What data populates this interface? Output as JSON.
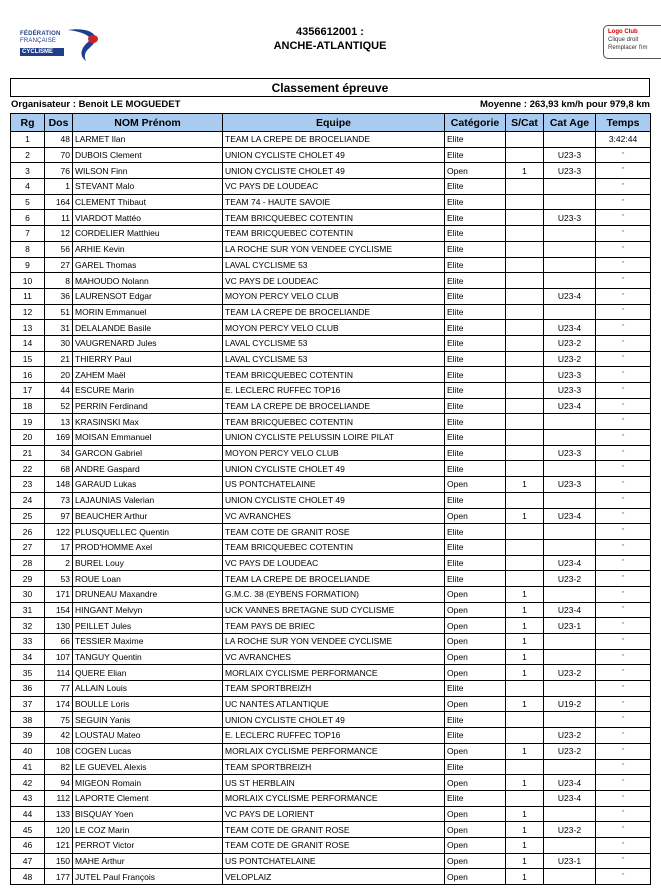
{
  "header": {
    "logo_left_text": [
      "FÉDÉRATION",
      "FRANÇAISE",
      "CYCLISME"
    ],
    "event_code": "4356612001 :",
    "event_name": "ANCHE-ATLANTIQUE",
    "logo_right_lines": [
      "Logo Club",
      "Clique droit",
      "Remplacer l'im"
    ]
  },
  "title": "Classement épreuve",
  "organisateur": "Organisateur : Benoit LE MOGUEDET",
  "moyenne": "Moyenne : 263,93 km/h pour 979,8 km",
  "columns": [
    "Rg",
    "Dos",
    "NOM Prénom",
    "Equipe",
    "Catégorie",
    "S/Cat",
    "Cat Age",
    "Temps"
  ],
  "rows": [
    [
      "1",
      "48",
      "LARMET Ilan",
      "TEAM LA CREPE DE BROCELIANDE",
      "Elite",
      "",
      "",
      "3:42:44"
    ],
    [
      "2",
      "70",
      "DUBOIS Clement",
      "UNION CYCLISTE CHOLET 49",
      "Elite",
      "",
      "U23-3",
      "\""
    ],
    [
      "3",
      "76",
      "WILSON Finn",
      "UNION CYCLISTE CHOLET 49",
      "Open",
      "1",
      "U23-3",
      "\""
    ],
    [
      "4",
      "1",
      "STEVANT Malo",
      "VC PAYS DE LOUDEAC",
      "Elite",
      "",
      "",
      "\""
    ],
    [
      "5",
      "164",
      "CLEMENT Thibaut",
      "TEAM 74 - HAUTE SAVOIE",
      "Elite",
      "",
      "",
      "\""
    ],
    [
      "6",
      "11",
      "VIARDOT Mattéo",
      "TEAM BRICQUEBEC COTENTIN",
      "Elite",
      "",
      "U23-3",
      "\""
    ],
    [
      "7",
      "12",
      "CORDELIER Matthieu",
      "TEAM BRICQUEBEC COTENTIN",
      "Elite",
      "",
      "",
      "\""
    ],
    [
      "8",
      "56",
      "ARHIE Kevin",
      "LA ROCHE SUR YON VENDEE CYCLISME",
      "Elite",
      "",
      "",
      "\""
    ],
    [
      "9",
      "27",
      "GAREL Thomas",
      "LAVAL CYCLISME 53",
      "Elite",
      "",
      "",
      "\""
    ],
    [
      "10",
      "8",
      "MAHOUDO Nolann",
      "VC PAYS DE LOUDEAC",
      "Elite",
      "",
      "",
      "\""
    ],
    [
      "11",
      "36",
      "LAURENSOT Edgar",
      "MOYON PERCY VELO CLUB",
      "Elite",
      "",
      "U23-4",
      "\""
    ],
    [
      "12",
      "51",
      "MORIN Emmanuel",
      "TEAM LA CREPE DE BROCELIANDE",
      "Elite",
      "",
      "",
      "\""
    ],
    [
      "13",
      "31",
      "DELALANDE Basile",
      "MOYON PERCY VELO CLUB",
      "Elite",
      "",
      "U23-4",
      "\""
    ],
    [
      "14",
      "30",
      "VAUGRENARD Jules",
      "LAVAL CYCLISME 53",
      "Elite",
      "",
      "U23-2",
      "\""
    ],
    [
      "15",
      "21",
      "THIERRY Paul",
      "LAVAL CYCLISME 53",
      "Elite",
      "",
      "U23-2",
      "\""
    ],
    [
      "16",
      "20",
      "ZAHEM Maël",
      "TEAM BRICQUEBEC COTENTIN",
      "Elite",
      "",
      "U23-3",
      "\""
    ],
    [
      "17",
      "44",
      "ESCURE Marin",
      "E. LECLERC RUFFEC TOP16",
      "Elite",
      "",
      "U23-3",
      "\""
    ],
    [
      "18",
      "52",
      "PERRIN Ferdinand",
      "TEAM LA CREPE DE BROCELIANDE",
      "Elite",
      "",
      "U23-4",
      "\""
    ],
    [
      "19",
      "13",
      "KRASINSKI Max",
      "TEAM BRICQUEBEC COTENTIN",
      "Elite",
      "",
      "",
      "\""
    ],
    [
      "20",
      "169",
      "MOISAN Emmanuel",
      "UNION CYCLISTE PELUSSIN LOIRE PILAT",
      "Elite",
      "",
      "",
      "\""
    ],
    [
      "21",
      "34",
      "GARCON Gabriel",
      "MOYON PERCY VELO CLUB",
      "Elite",
      "",
      "U23-3",
      "\""
    ],
    [
      "22",
      "68",
      "ANDRE Gaspard",
      "UNION CYCLISTE CHOLET 49",
      "Elite",
      "",
      "",
      "\""
    ],
    [
      "23",
      "148",
      "GARAUD Lukas",
      "US PONTCHATELAINE",
      "Open",
      "1",
      "U23-3",
      "\""
    ],
    [
      "24",
      "73",
      "LAJAUNIAS Valerian",
      "UNION CYCLISTE CHOLET 49",
      "Elite",
      "",
      "",
      "\""
    ],
    [
      "25",
      "97",
      "BEAUCHER Arthur",
      "VC AVRANCHES",
      "Open",
      "1",
      "U23-4",
      "\""
    ],
    [
      "26",
      "122",
      "PLUSQUELLEC Quentin",
      "TEAM COTE DE GRANIT ROSE",
      "Elite",
      "",
      "",
      "\""
    ],
    [
      "27",
      "17",
      "PROD'HOMME Axel",
      "TEAM BRICQUEBEC COTENTIN",
      "Elite",
      "",
      "",
      "\""
    ],
    [
      "28",
      "2",
      "BUREL Louy",
      "VC PAYS DE LOUDEAC",
      "Elite",
      "",
      "U23-4",
      "\""
    ],
    [
      "29",
      "53",
      "ROUE Loan",
      "TEAM LA CREPE DE BROCELIANDE",
      "Elite",
      "",
      "U23-2",
      "\""
    ],
    [
      "30",
      "171",
      "DRUNEAU Maxandre",
      "G.M.C. 38 (EYBENS FORMATION)",
      "Open",
      "1",
      "",
      "\""
    ],
    [
      "31",
      "154",
      "HINGANT Melvyn",
      "UCK VANNES BRETAGNE SUD CYCLISME",
      "Open",
      "1",
      "U23-4",
      "\""
    ],
    [
      "32",
      "130",
      "PEILLET Jules",
      "TEAM PAYS DE BRIEC",
      "Open",
      "1",
      "U23-1",
      "\""
    ],
    [
      "33",
      "66",
      "TESSIER Maxime",
      "LA ROCHE SUR YON VENDEE CYCLISME",
      "Open",
      "1",
      "",
      "\""
    ],
    [
      "34",
      "107",
      "TANGUY Quentin",
      "VC AVRANCHES",
      "Open",
      "1",
      "",
      "\""
    ],
    [
      "35",
      "114",
      "QUERE Elian",
      "MORLAIX CYCLISME PERFORMANCE",
      "Open",
      "1",
      "U23-2",
      "\""
    ],
    [
      "36",
      "77",
      "ALLAIN Louis",
      "TEAM SPORTBREIZH",
      "Elite",
      "",
      "",
      "\""
    ],
    [
      "37",
      "174",
      "BOULLE Loris",
      "UC NANTES ATLANTIQUE",
      "Open",
      "1",
      "U19-2",
      "\""
    ],
    [
      "38",
      "75",
      "SEGUIN Yanis",
      "UNION CYCLISTE CHOLET 49",
      "Elite",
      "",
      "",
      "\""
    ],
    [
      "39",
      "42",
      "LOUSTAU Mateo",
      "E. LECLERC RUFFEC TOP16",
      "Elite",
      "",
      "U23-2",
      "\""
    ],
    [
      "40",
      "108",
      "COGEN Lucas",
      "MORLAIX CYCLISME PERFORMANCE",
      "Open",
      "1",
      "U23-2",
      "\""
    ],
    [
      "41",
      "82",
      "LE GUEVEL Alexis",
      "TEAM SPORTBREIZH",
      "Elite",
      "",
      "",
      "\""
    ],
    [
      "42",
      "94",
      "MIGEON Romain",
      "US ST HERBLAIN",
      "Open",
      "1",
      "U23-4",
      "\""
    ],
    [
      "43",
      "112",
      "LAPORTE Clement",
      "MORLAIX CYCLISME PERFORMANCE",
      "Elite",
      "",
      "U23-4",
      "\""
    ],
    [
      "44",
      "133",
      "BISQUAY Yoen",
      "VC PAYS DE LORIENT",
      "Open",
      "1",
      "",
      "\""
    ],
    [
      "45",
      "120",
      "LE COZ Marin",
      "TEAM COTE DE GRANIT ROSE",
      "Open",
      "1",
      "U23-2",
      "\""
    ],
    [
      "46",
      "121",
      "PERROT Victor",
      "TEAM COTE DE GRANIT ROSE",
      "Open",
      "1",
      "",
      "\""
    ],
    [
      "47",
      "150",
      "MAHE Arthur",
      "US PONTCHATELAINE",
      "Open",
      "1",
      "U23-1",
      "\""
    ],
    [
      "48",
      "177",
      "JUTEL Paul François",
      "VELOPLAIZ",
      "Open",
      "1",
      "",
      "\""
    ]
  ],
  "colors": {
    "header_bg": "#a9cbf0",
    "logo_blue": "#1f3f8a",
    "logo_red": "#d0202a"
  }
}
